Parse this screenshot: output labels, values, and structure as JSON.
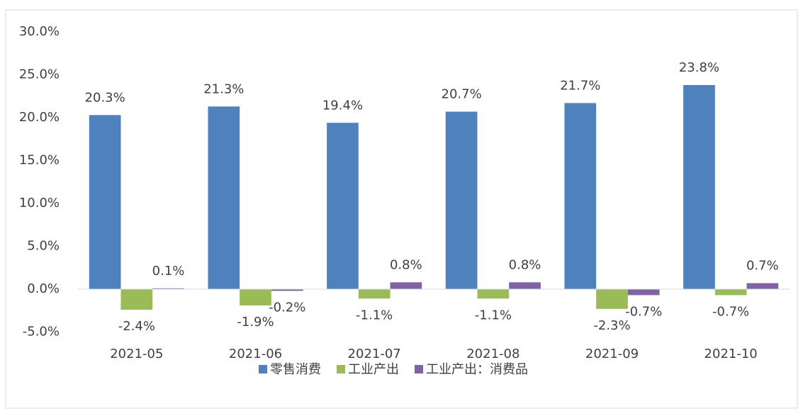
{
  "chart_data": {
    "type": "bar",
    "categories": [
      "2021-05",
      "2021-06",
      "2021-07",
      "2021-08",
      "2021-09",
      "2021-10"
    ],
    "series": [
      {
        "name": "零售消费",
        "color": "#4f81bd",
        "values": [
          20.3,
          21.3,
          19.4,
          20.7,
          21.7,
          23.8
        ],
        "value_labels": [
          "20.3%",
          "21.3%",
          "19.4%",
          "20.7%",
          "21.7%",
          "23.8%"
        ]
      },
      {
        "name": "工业产出",
        "color": "#9bbb59",
        "values": [
          -2.4,
          -1.9,
          -1.1,
          -1.1,
          -2.3,
          -0.7
        ],
        "value_labels": [
          "-2.4%",
          "-1.9%",
          "-1.1%",
          "-1.1%",
          "-2.3%",
          "-0.7%"
        ]
      },
      {
        "name": "工业产出：消费品",
        "color": "#8064a2",
        "values": [
          0.1,
          -0.2,
          0.8,
          0.8,
          -0.7,
          0.7
        ],
        "value_labels": [
          "0.1%",
          "-0.2%",
          "0.8%",
          "0.8%",
          "-0.7%",
          "0.7%"
        ]
      }
    ],
    "ylim": [
      -5,
      30
    ],
    "yticks": [
      {
        "value": -5,
        "label": "-5.0%"
      },
      {
        "value": 0,
        "label": "0.0%"
      },
      {
        "value": 5,
        "label": "5.0%"
      },
      {
        "value": 10,
        "label": "10.0%"
      },
      {
        "value": 15,
        "label": "15.0%"
      },
      {
        "value": 20,
        "label": "20.0%"
      },
      {
        "value": 25,
        "label": "25.0%"
      },
      {
        "value": 30,
        "label": "30.0%"
      }
    ],
    "grid": false,
    "legend": "bottom"
  }
}
